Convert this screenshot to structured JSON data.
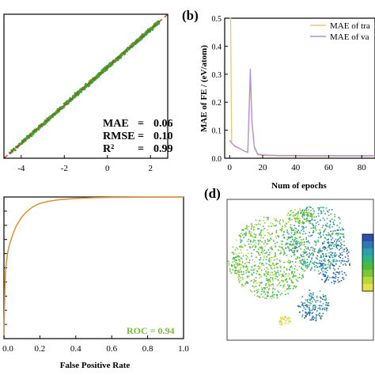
{
  "colors": {
    "scatter_point": "#3aa82e",
    "diagonal": "#d9312b",
    "train_line": "#e6c77a",
    "val_line": "#b48ee0",
    "roc_line": "#e0912a",
    "roc_label": "#7cbb3a",
    "tsne_palette": [
      "#2e4fa8",
      "#2f78b5",
      "#2aa1a8",
      "#2fb380",
      "#4cbb3a",
      "#7dc63a",
      "#b9d63a",
      "#e6e04a"
    ]
  },
  "panels": {
    "b_label": "(b)",
    "d_label": "(d)"
  },
  "chart_data": [
    {
      "panel": "a",
      "type": "scatter",
      "xticks": [
        "-4",
        "-2",
        "0",
        "2"
      ],
      "xtick_values": [
        -4,
        -2,
        0,
        2
      ],
      "xlim": [
        -4.8,
        2.8
      ],
      "ylim": [
        -4.8,
        2.8
      ],
      "diagonal": true,
      "metrics": [
        {
          "name": "MAE",
          "eq": "=",
          "value": "0.06"
        },
        {
          "name": "RMSE",
          "eq": "=",
          "value": "0.10"
        },
        {
          "name": "R²",
          "eq": "=",
          "value": "0.99"
        }
      ]
    },
    {
      "panel": "b",
      "type": "line",
      "ylabel": "MAE of FE / (eV/atom)",
      "xlabel": "Num of epochs",
      "xticks": [
        "0",
        "20",
        "40",
        "60",
        "80"
      ],
      "xtick_values": [
        0,
        20,
        40,
        60,
        80
      ],
      "yticks": [
        "0.0",
        "0.1",
        "0.2",
        "0.3",
        "0.4",
        "0.5"
      ],
      "ytick_values": [
        0.0,
        0.1,
        0.2,
        0.3,
        0.4,
        0.5
      ],
      "xlim": [
        -3,
        88
      ],
      "ylim": [
        0,
        0.5
      ],
      "legend_position": "top-right",
      "series": [
        {
          "name": "MAE of tra",
          "x": [
            0,
            0.6,
            1.2,
            3,
            6,
            9,
            11,
            11.8,
            12.5,
            13.5,
            15,
            17,
            20,
            25,
            30,
            40,
            50,
            60,
            70,
            80,
            88
          ],
          "y": [
            0.5,
            0.5,
            0.055,
            0.042,
            0.035,
            0.025,
            0.02,
            0.15,
            0.3,
            0.12,
            0.035,
            0.012,
            0.01,
            0.009,
            0.008,
            0.008,
            0.007,
            0.007,
            0.007,
            0.007,
            0.007
          ]
        },
        {
          "name": "MAE of va",
          "x": [
            0,
            1,
            3,
            6,
            9,
            11,
            11.8,
            12.5,
            13.5,
            15,
            17,
            20,
            25,
            30,
            40,
            50,
            60,
            70,
            80,
            88
          ],
          "y": [
            0.065,
            0.055,
            0.045,
            0.035,
            0.025,
            0.022,
            0.18,
            0.32,
            0.13,
            0.04,
            0.015,
            0.012,
            0.011,
            0.01,
            0.01,
            0.009,
            0.009,
            0.009,
            0.009,
            0.009
          ]
        }
      ]
    },
    {
      "panel": "c",
      "type": "line",
      "xlabel": "False Positive Rate",
      "xticks": [
        "0.0",
        "0.2",
        "0.4",
        "0.6",
        "0.8",
        "1.0"
      ],
      "xtick_values": [
        0,
        0.2,
        0.4,
        0.6,
        0.8,
        1.0
      ],
      "xlim": [
        0,
        1
      ],
      "ylim": [
        0,
        1
      ],
      "annotation": "ROC = 0.94",
      "series": [
        {
          "x": [
            0,
            0.005,
            0.01,
            0.02,
            0.03,
            0.05,
            0.07,
            0.1,
            0.13,
            0.16,
            0.2,
            0.25,
            0.3,
            0.4,
            0.5,
            0.6,
            0.8,
            1.0
          ],
          "y": [
            0,
            0.35,
            0.5,
            0.6,
            0.66,
            0.74,
            0.8,
            0.86,
            0.9,
            0.93,
            0.955,
            0.97,
            0.98,
            0.99,
            0.995,
            0.997,
            0.999,
            1.0
          ]
        }
      ]
    },
    {
      "panel": "d",
      "type": "scatter",
      "colorbar": true
    }
  ]
}
